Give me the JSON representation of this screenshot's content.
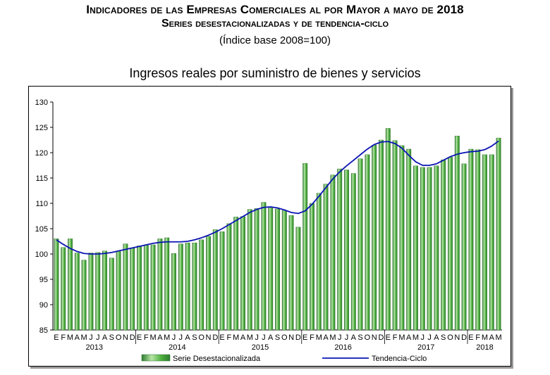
{
  "header": {
    "title": "Indicadores de las Empresas Comerciales al por Mayor a mayo de 2018",
    "subtitle": "Series desestacionalizadas y de tendencia-ciclo",
    "base_note": "(Índice base 2008=100)"
  },
  "chart_data": {
    "type": "bar",
    "title": "Ingresos reales por suministro de bienes y servicios",
    "ylim": [
      85,
      130
    ],
    "yticks": [
      85,
      90,
      95,
      100,
      105,
      110,
      115,
      120,
      125,
      130
    ],
    "grid": false,
    "legend_position": "bottom",
    "colors": {
      "bar": "#4caf3c",
      "bar_light": "#b8e6a8",
      "bar_dark": "#2e7d32",
      "trend": "#0a14b4"
    },
    "month_labels": [
      "E",
      "F",
      "M",
      "A",
      "M",
      "J",
      "J",
      "A",
      "S",
      "O",
      "N",
      "D",
      "E",
      "F",
      "M",
      "A",
      "M",
      "J",
      "J",
      "A",
      "S",
      "O",
      "N",
      "D",
      "E",
      "F",
      "M",
      "A",
      "M",
      "J",
      "J",
      "A",
      "S",
      "O",
      "N",
      "D",
      "E",
      "F",
      "M",
      "A",
      "M",
      "J",
      "J",
      "A",
      "S",
      "O",
      "N",
      "D",
      "E",
      "F",
      "M",
      "A",
      "M",
      "J",
      "J",
      "A",
      "S",
      "O",
      "N",
      "D",
      "E",
      "F",
      "M",
      "A",
      "M"
    ],
    "years": [
      {
        "label": "2013",
        "center_index": 5.5
      },
      {
        "label": "2014",
        "center_index": 17.5
      },
      {
        "label": "2015",
        "center_index": 29.5
      },
      {
        "label": "2016",
        "center_index": 41.5
      },
      {
        "label": "2017",
        "center_index": 53.5
      },
      {
        "label": "2018",
        "center_index": 62
      }
    ],
    "series": [
      {
        "name": "Serie Desestacionalizada",
        "kind": "bar",
        "values": [
          103.0,
          101.3,
          103.0,
          100.2,
          98.8,
          100.2,
          100.3,
          100.6,
          99.2,
          100.5,
          102.0,
          101.2,
          101.6,
          101.8,
          101.8,
          103.0,
          103.2,
          100.1,
          102.0,
          102.2,
          102.2,
          102.8,
          103.5,
          104.8,
          104.4,
          106.0,
          107.3,
          107.4,
          108.8,
          109.0,
          110.2,
          109.1,
          108.9,
          108.6,
          107.6,
          105.3,
          117.9,
          110.0,
          112.0,
          113.8,
          115.6,
          116.8,
          116.6,
          115.9,
          118.8,
          119.6,
          121.5,
          122.5,
          124.8,
          122.4,
          121.4,
          120.7,
          117.4,
          117.1,
          117.1,
          117.4,
          118.6,
          119.1,
          123.3,
          117.8,
          120.7,
          120.6,
          119.6,
          119.6,
          122.9
        ]
      },
      {
        "name": "Tendencia-Ciclo",
        "kind": "line",
        "values": [
          102.8,
          101.9,
          101.1,
          100.5,
          100.1,
          100.0,
          100.0,
          100.1,
          100.3,
          100.6,
          100.9,
          101.2,
          101.5,
          101.8,
          102.1,
          102.3,
          102.4,
          102.4,
          102.4,
          102.5,
          102.8,
          103.2,
          103.7,
          104.3,
          105.0,
          105.8,
          106.6,
          107.4,
          108.2,
          108.8,
          109.2,
          109.3,
          109.1,
          108.7,
          108.2,
          108.0,
          108.5,
          109.8,
          111.4,
          113.1,
          114.8,
          116.2,
          117.4,
          118.5,
          119.6,
          120.7,
          121.6,
          122.1,
          122.2,
          121.8,
          120.9,
          119.5,
          118.2,
          117.5,
          117.5,
          117.8,
          118.5,
          119.2,
          119.7,
          120.0,
          120.2,
          120.3,
          120.6,
          121.3,
          122.3
        ]
      }
    ]
  }
}
